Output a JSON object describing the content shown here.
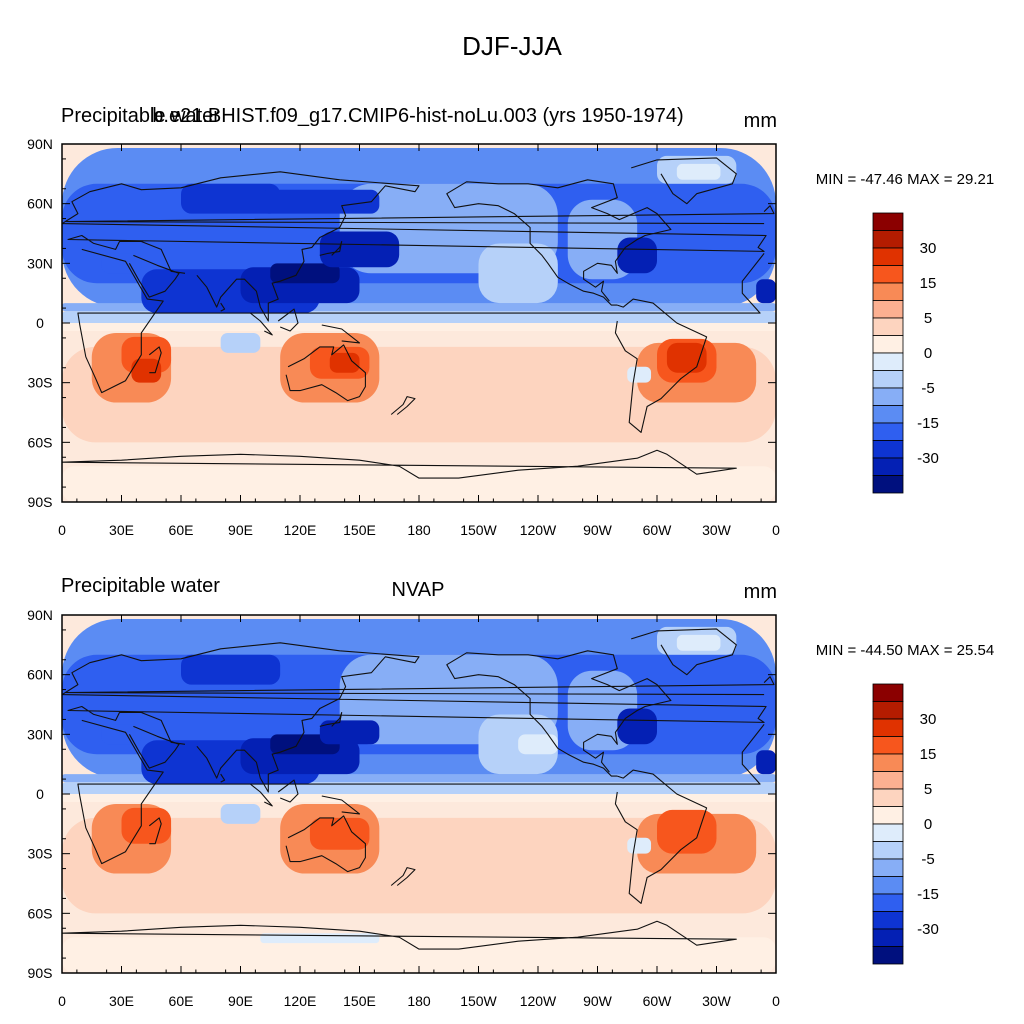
{
  "figure": {
    "title": "DJF-JJA"
  },
  "chart_data": [
    {
      "type": "heatmap",
      "variable": "Precipitable water",
      "case": "b.e21.BHIST.f09_g17.CMIP6-hist-noLu.003 (yrs 1950-1974)",
      "units": "mm",
      "stats": "MIN = -47.46 MAX =  29.21",
      "min": -47.46,
      "max": 29.21,
      "x_ticks": [
        "0",
        "30E",
        "60E",
        "90E",
        "120E",
        "150E",
        "180",
        "150W",
        "120W",
        "90W",
        "60W",
        "30W",
        "0"
      ],
      "y_ticks": [
        "90N",
        "60N",
        "30N",
        "0",
        "30S",
        "60S",
        "90S"
      ],
      "xlim": [
        0,
        360
      ],
      "ylim": [
        -90,
        90
      ],
      "colorbar_labels": [
        "30",
        "15",
        "5",
        "0",
        "-5",
        "-15",
        "-30"
      ]
    },
    {
      "type": "heatmap",
      "variable": "Precipitable water",
      "case": "NVAP",
      "units": "mm",
      "stats": "MIN = -44.50 MAX =  25.54",
      "min": -44.5,
      "max": 25.54,
      "x_ticks": [
        "0",
        "30E",
        "60E",
        "90E",
        "120E",
        "150E",
        "180",
        "150W",
        "120W",
        "90W",
        "60W",
        "30W",
        "0"
      ],
      "y_ticks": [
        "90N",
        "60N",
        "30N",
        "0",
        "30S",
        "60S",
        "90S"
      ],
      "xlim": [
        0,
        360
      ],
      "ylim": [
        -90,
        90
      ],
      "colorbar_labels": [
        "30",
        "15",
        "5",
        "0",
        "-5",
        "-15",
        "-30"
      ]
    }
  ],
  "colorbar": {
    "colors": [
      "#8b0000",
      "#b41c00",
      "#e03200",
      "#f7561d",
      "#f88a56",
      "#fcb091",
      "#fdd4bf",
      "#fff0e4",
      "#deecfb",
      "#b6d1f9",
      "#87aef6",
      "#5b8cf3",
      "#2f5ff0",
      "#0e34d2",
      "#0420b4",
      "#00107e"
    ]
  }
}
